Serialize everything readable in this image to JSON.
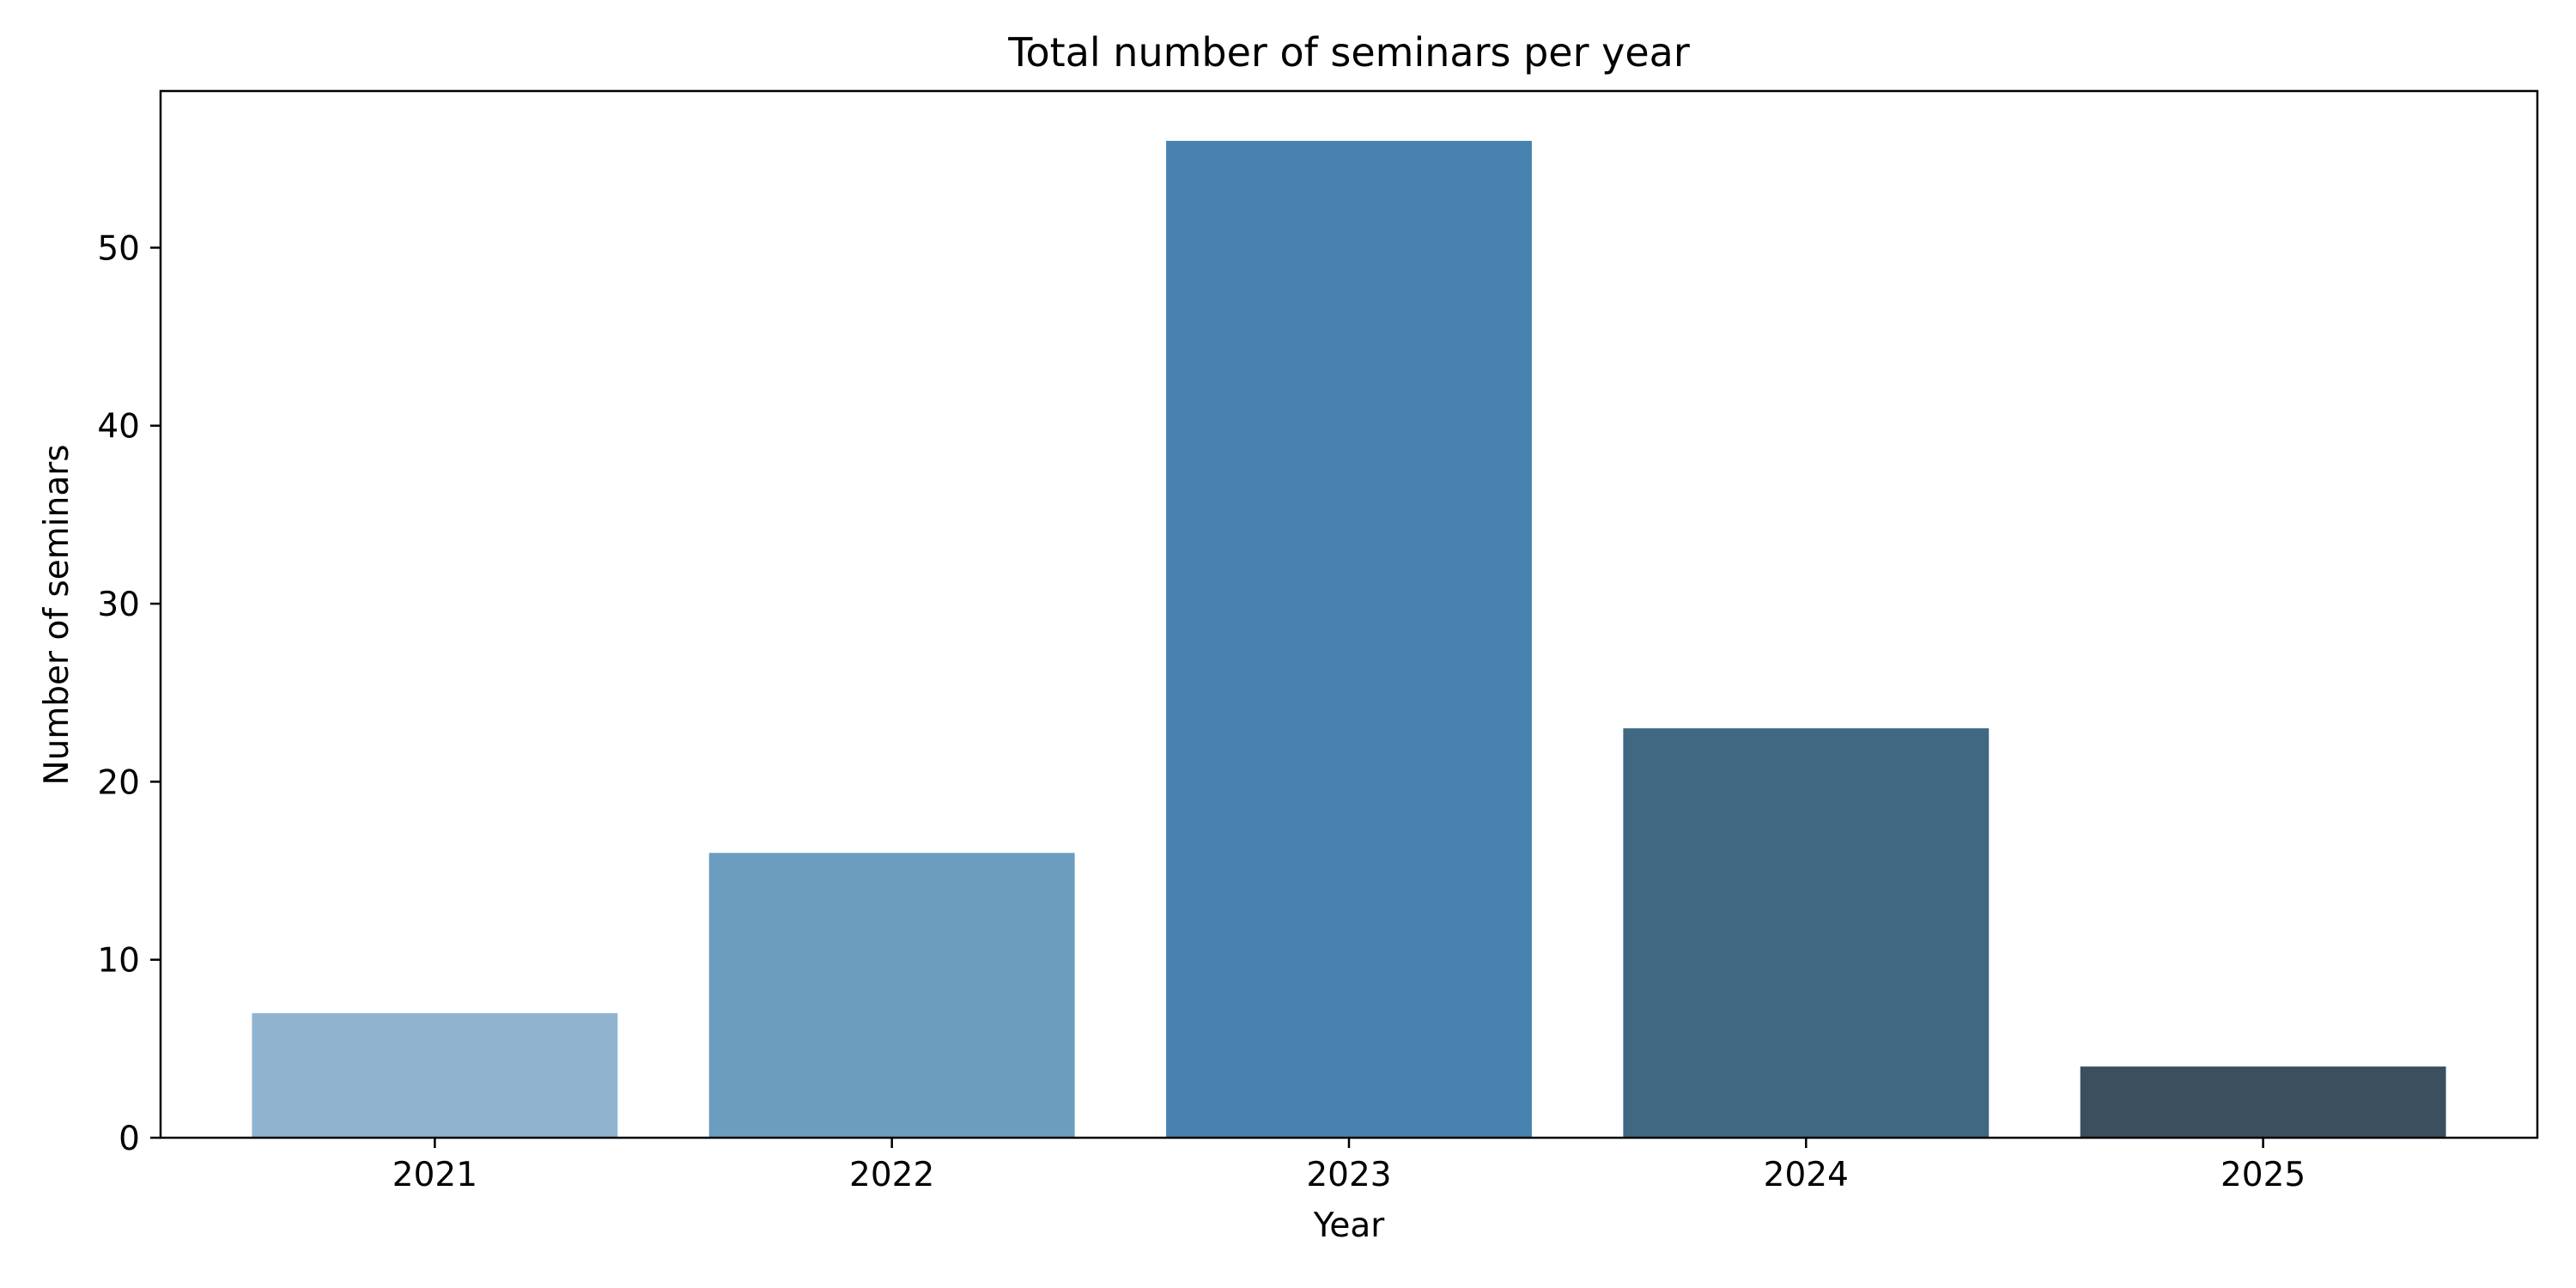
{
  "chart_data": {
    "type": "bar",
    "title": "Total number of seminars per year",
    "xlabel": "Year",
    "ylabel": "Number of seminars",
    "categories": [
      "2021",
      "2022",
      "2023",
      "2024",
      "2025"
    ],
    "values": [
      7,
      16,
      56,
      23,
      4
    ],
    "colors": [
      "#90b4d0",
      "#6b9dbf",
      "#4883af",
      "#416883",
      "#3b4f5f"
    ],
    "ylim": [
      0,
      58.8
    ],
    "yticks": [
      0,
      10,
      20,
      30,
      40,
      50
    ],
    "grid": false,
    "legend": "none"
  }
}
